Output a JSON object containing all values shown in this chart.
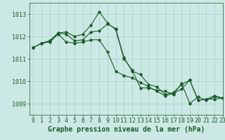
{
  "background_color": "#cce8e4",
  "grid_color": "#a8cdc8",
  "line_color": "#1a5c2a",
  "title": "Graphe pression niveau de la mer (hPa)",
  "ylim": [
    1008.5,
    1013.5
  ],
  "xlim": [
    -0.5,
    23
  ],
  "yticks": [
    1009,
    1010,
    1011,
    1012,
    1013
  ],
  "xticks": [
    0,
    1,
    2,
    3,
    4,
    5,
    6,
    7,
    8,
    9,
    10,
    11,
    12,
    13,
    14,
    15,
    16,
    17,
    18,
    19,
    20,
    21,
    22,
    23
  ],
  "series": [
    [
      1011.5,
      1011.7,
      1011.8,
      1012.15,
      1012.2,
      1012.0,
      1012.1,
      1012.5,
      1013.1,
      1012.6,
      1012.3,
      1011.0,
      1010.5,
      1009.7,
      1009.7,
      1009.6,
      1009.55,
      1009.4,
      1009.9,
      1009.0,
      1009.3,
      1009.15,
      1009.3,
      1009.25
    ],
    [
      1011.5,
      1011.7,
      1011.8,
      1012.15,
      1012.1,
      1011.8,
      1011.85,
      1012.2,
      1012.25,
      1012.55,
      1012.35,
      1011.05,
      1010.45,
      1010.3,
      1009.85,
      1009.75,
      1009.4,
      1009.5,
      1009.85,
      1010.05,
      1009.15,
      1009.2,
      1009.35,
      1009.25
    ],
    [
      1011.5,
      1011.7,
      1011.75,
      1012.1,
      1011.75,
      1011.7,
      1011.75,
      1011.85,
      1011.85,
      1011.3,
      1010.45,
      1010.25,
      1010.15,
      1009.95,
      1009.75,
      1009.55,
      1009.35,
      1009.45,
      1009.65,
      1010.05,
      1009.15,
      1009.2,
      1009.2,
      1009.25
    ]
  ],
  "title_fontsize": 7,
  "tick_fontsize": 6,
  "title_color": "#1a5c2a",
  "tick_color": "#1a5c2a",
  "marker": "D",
  "marker_size": 1.8,
  "linewidth": 0.8
}
